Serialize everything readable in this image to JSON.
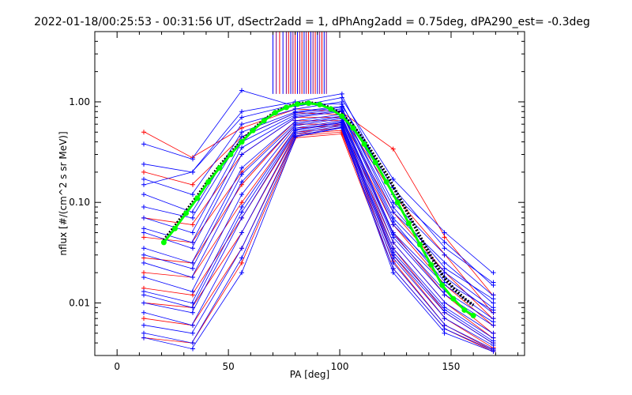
{
  "chart_data": {
    "type": "line",
    "title": "2022-01-18/00:25:53 - 00:31:56 UT, dSectr2add = 1, dPhAng2add = 0.75deg, dPA290_est=  -0.3deg",
    "xlabel": "PA [deg]",
    "ylabel": "nflux [#/(cm^2 s sr MeV)]",
    "xlim": [
      -10,
      183
    ],
    "ylim": [
      0.003,
      5
    ],
    "yscale": "log",
    "xticks": [
      0,
      50,
      100,
      150
    ],
    "xtick_labels": [
      "0",
      "50",
      "100",
      "150"
    ],
    "yticks": [
      0.01,
      0.1,
      1
    ],
    "ytick_labels": [
      "0.01",
      "0.10",
      "1.00"
    ],
    "grid": false,
    "colors": {
      "blue": "#0000ff",
      "red": "#ff0000",
      "green": "#00ff00",
      "black": "#000000",
      "purple": "#800080"
    },
    "vertical_markers_x": [
      70,
      71.5,
      73,
      74.5,
      76,
      77,
      78,
      79,
      80,
      81,
      82,
      83,
      84,
      85,
      86,
      87,
      88,
      89,
      90,
      91,
      92,
      93,
      94
    ],
    "vertical_marker_range": [
      1.2,
      5
    ],
    "spectra_pa": [
      12,
      34,
      56,
      80,
      101,
      124,
      147,
      169
    ],
    "spectra_blue": [
      [
        0.38,
        0.27,
        1.3,
        0.9,
        1.1,
        0.17,
        0.05,
        0.02
      ],
      [
        0.24,
        0.2,
        0.8,
        1.0,
        1.2,
        0.12,
        0.04,
        0.015
      ],
      [
        0.17,
        0.12,
        0.6,
        0.85,
        1.0,
        0.1,
        0.03,
        0.012
      ],
      [
        0.12,
        0.08,
        0.5,
        0.8,
        0.9,
        0.08,
        0.025,
        0.01
      ],
      [
        0.07,
        0.05,
        0.4,
        0.75,
        0.85,
        0.07,
        0.02,
        0.009
      ],
      [
        0.05,
        0.035,
        0.3,
        0.7,
        0.8,
        0.06,
        0.018,
        0.008
      ],
      [
        0.035,
        0.025,
        0.22,
        0.65,
        0.75,
        0.05,
        0.015,
        0.007
      ],
      [
        0.025,
        0.018,
        0.16,
        0.6,
        0.7,
        0.045,
        0.012,
        0.006
      ],
      [
        0.018,
        0.013,
        0.12,
        0.58,
        0.68,
        0.04,
        0.01,
        0.005
      ],
      [
        0.013,
        0.01,
        0.09,
        0.55,
        0.65,
        0.035,
        0.009,
        0.0045
      ],
      [
        0.01,
        0.008,
        0.07,
        0.52,
        0.62,
        0.03,
        0.008,
        0.004
      ],
      [
        0.008,
        0.006,
        0.05,
        0.5,
        0.6,
        0.028,
        0.007,
        0.0038
      ],
      [
        0.006,
        0.005,
        0.035,
        0.48,
        0.58,
        0.025,
        0.006,
        0.0035
      ],
      [
        0.005,
        0.004,
        0.028,
        0.46,
        0.56,
        0.022,
        0.0055,
        0.0034
      ],
      [
        0.0045,
        0.0035,
        0.02,
        0.45,
        0.55,
        0.02,
        0.005,
        0.0033
      ],
      [
        0.15,
        0.2,
        0.7,
        0.95,
        0.95,
        0.14,
        0.035,
        0.016
      ],
      [
        0.09,
        0.07,
        0.45,
        0.78,
        0.88,
        0.09,
        0.022,
        0.011
      ],
      [
        0.055,
        0.04,
        0.35,
        0.72,
        0.82,
        0.065,
        0.016,
        0.0085
      ],
      [
        0.03,
        0.022,
        0.19,
        0.62,
        0.72,
        0.048,
        0.013,
        0.0065
      ],
      [
        0.012,
        0.009,
        0.08,
        0.53,
        0.63,
        0.032,
        0.0085,
        0.0042
      ]
    ],
    "spectra_red": [
      [
        0.5,
        0.28,
        0.55,
        0.85,
        0.8,
        0.34,
        0.045,
        0.012
      ],
      [
        0.2,
        0.15,
        0.45,
        0.78,
        0.75,
        0.12,
        0.03,
        0.008
      ],
      [
        0.07,
        0.06,
        0.3,
        0.7,
        0.7,
        0.08,
        0.02,
        0.007
      ],
      [
        0.045,
        0.04,
        0.2,
        0.65,
        0.65,
        0.06,
        0.015,
        0.006
      ],
      [
        0.028,
        0.025,
        0.15,
        0.6,
        0.6,
        0.05,
        0.012,
        0.005
      ],
      [
        0.02,
        0.018,
        0.1,
        0.55,
        0.58,
        0.04,
        0.01,
        0.0045
      ],
      [
        0.014,
        0.012,
        0.07,
        0.5,
        0.55,
        0.035,
        0.008,
        0.004
      ],
      [
        0.01,
        0.009,
        0.05,
        0.48,
        0.52,
        0.03,
        0.007,
        0.0036
      ],
      [
        0.007,
        0.006,
        0.035,
        0.46,
        0.5,
        0.026,
        0.006,
        0.0034
      ],
      [
        0.0045,
        0.004,
        0.025,
        0.44,
        0.48,
        0.022,
        0.0055,
        0.0033
      ]
    ],
    "fit_green": [
      [
        21,
        0.04
      ],
      [
        26,
        0.055
      ],
      [
        31,
        0.078
      ],
      [
        36,
        0.11
      ],
      [
        41,
        0.16
      ],
      [
        46,
        0.22
      ],
      [
        51,
        0.3
      ],
      [
        56,
        0.4
      ],
      [
        61,
        0.52
      ],
      [
        66,
        0.65
      ],
      [
        71,
        0.78
      ],
      [
        76,
        0.88
      ],
      [
        81,
        0.95
      ],
      [
        86,
        0.97
      ],
      [
        91,
        0.94
      ],
      [
        96,
        0.85
      ],
      [
        101,
        0.72
      ],
      [
        106,
        0.55
      ],
      [
        111,
        0.38
      ],
      [
        116,
        0.25
      ],
      [
        121,
        0.16
      ],
      [
        126,
        0.1
      ],
      [
        131,
        0.062
      ],
      [
        136,
        0.038
      ],
      [
        141,
        0.024
      ],
      [
        146,
        0.015
      ],
      [
        151,
        0.011
      ],
      [
        156,
        0.0085
      ],
      [
        160,
        0.0075
      ]
    ],
    "fit_black": [
      [
        21,
        0.042
      ],
      [
        26,
        0.058
      ],
      [
        31,
        0.082
      ],
      [
        36,
        0.115
      ],
      [
        41,
        0.165
      ],
      [
        46,
        0.23
      ],
      [
        51,
        0.31
      ],
      [
        56,
        0.41
      ],
      [
        61,
        0.53
      ],
      [
        66,
        0.66
      ],
      [
        71,
        0.79
      ],
      [
        76,
        0.89
      ],
      [
        81,
        0.96
      ],
      [
        86,
        0.98
      ],
      [
        91,
        0.95
      ],
      [
        96,
        0.87
      ],
      [
        101,
        0.75
      ],
      [
        106,
        0.58
      ],
      [
        111,
        0.41
      ],
      [
        116,
        0.28
      ],
      [
        121,
        0.19
      ],
      [
        126,
        0.12
      ],
      [
        131,
        0.075
      ],
      [
        136,
        0.046
      ],
      [
        141,
        0.029
      ],
      [
        146,
        0.019
      ],
      [
        151,
        0.014
      ],
      [
        156,
        0.011
      ],
      [
        160,
        0.0095
      ]
    ]
  }
}
